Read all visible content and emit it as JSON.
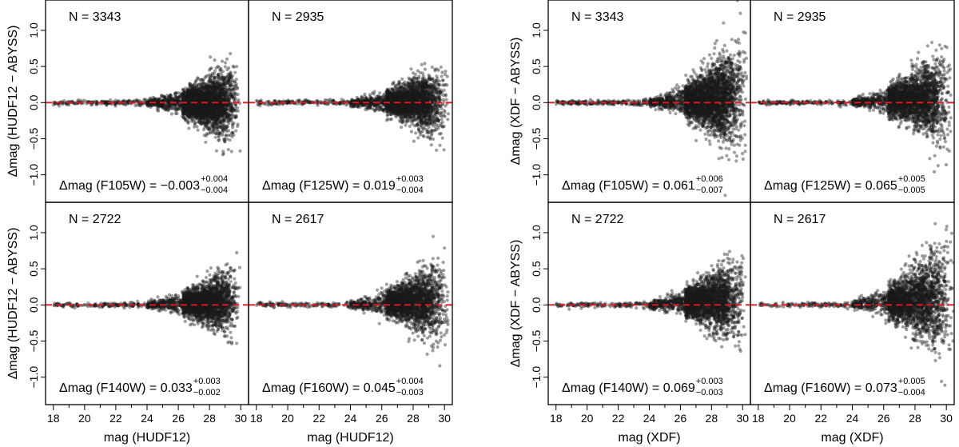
{
  "chart_data": {
    "type": "scatter",
    "description_axes": {
      "x_ticks": [
        18,
        20,
        22,
        24,
        26,
        28,
        30
      ],
      "xlim": [
        17.5,
        30.5
      ],
      "y_ticks": [
        -1.0,
        -0.5,
        0.0,
        0.5,
        1.0
      ],
      "y_tick_labels": [
        "−1.0",
        "−0.5",
        "0.0",
        "0.5",
        "1.0"
      ],
      "ylim": [
        -1.38,
        1.42
      ],
      "reference_line": {
        "y": 0.0,
        "color": "#e8161d",
        "style": "dashed"
      },
      "point_color": "#1a1a1a"
    },
    "figures": [
      {
        "ylabel": "Δmag (HUDF12 − ABYSS)",
        "xlabel": "mag (HUDF12)",
        "panels": [
          {
            "n_label": "N = 3343",
            "filter_label": "Δmag (F105W) = −0.003",
            "sup": "+0.004",
            "sub": "−0.004",
            "n": 3343,
            "offset": -0.003,
            "spread": 0.3,
            "max_mag": 30.0
          },
          {
            "n_label": "N = 2935",
            "filter_label": "Δmag (F125W) = 0.019",
            "sup": "+0.003",
            "sub": "−0.004",
            "n": 2935,
            "offset": 0.019,
            "spread": 0.26,
            "max_mag": 30.3
          },
          {
            "n_label": "N = 2722",
            "filter_label": "Δmag (F140W) = 0.033",
            "sup": "+0.003",
            "sub": "−0.002",
            "n": 2722,
            "offset": 0.033,
            "spread": 0.27,
            "max_mag": 30.0
          },
          {
            "n_label": "N = 2617",
            "filter_label": "Δmag (F160W) = 0.045",
            "sup": "+0.004",
            "sub": "−0.003",
            "n": 2617,
            "offset": 0.045,
            "spread": 0.3,
            "max_mag": 30.3
          }
        ]
      },
      {
        "ylabel": "Δmag (XDF − ABYSS)",
        "xlabel": "mag (XDF)",
        "panels": [
          {
            "n_label": "N = 3343",
            "filter_label": "Δmag (F105W) = 0.061",
            "sup": "+0.006",
            "sub": "−0.007",
            "n": 3343,
            "offset": 0.061,
            "spread": 0.4,
            "max_mag": 30.3
          },
          {
            "n_label": "N = 2935",
            "filter_label": "Δmag (F125W) = 0.065",
            "sup": "+0.005",
            "sub": "−0.005",
            "n": 2935,
            "offset": 0.065,
            "spread": 0.33,
            "max_mag": 30.4
          },
          {
            "n_label": "N = 2722",
            "filter_label": "Δmag (F140W) = 0.069",
            "sup": "+0.003",
            "sub": "−0.003",
            "n": 2722,
            "offset": 0.069,
            "spread": 0.33,
            "max_mag": 30.2
          },
          {
            "n_label": "N = 2617",
            "filter_label": "Δmag (F160W) = 0.073",
            "sup": "+0.005",
            "sub": "−0.004",
            "n": 2617,
            "offset": 0.073,
            "spread": 0.4,
            "max_mag": 30.5
          }
        ]
      }
    ]
  }
}
